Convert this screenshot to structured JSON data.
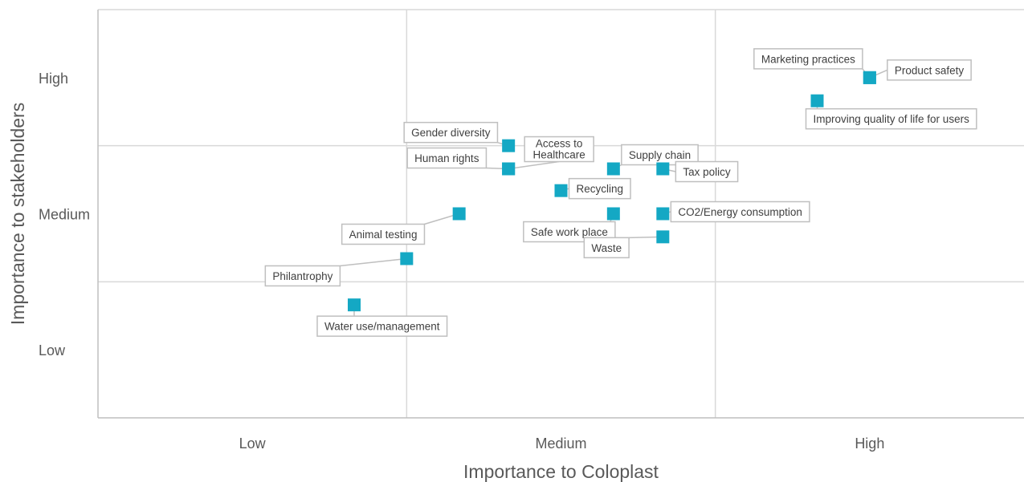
{
  "chart_data": {
    "type": "scatter",
    "xlabel": "Importance to Coloplast",
    "ylabel": "Importance to stakeholders",
    "xlim": [
      0,
      3
    ],
    "ylim": [
      0,
      3
    ],
    "x_tick_labels": [
      "Low",
      "Medium",
      "High"
    ],
    "y_tick_labels": [
      "Low",
      "Medium",
      "High"
    ],
    "grid": true,
    "marker_color": "#14a8c4",
    "points": [
      {
        "label": "Marketing practices",
        "x": 2.5,
        "y": 2.5
      },
      {
        "label": "Product safety",
        "x": 2.5,
        "y": 2.5
      },
      {
        "label": "Improving quality of life for users",
        "x": 2.33,
        "y": 2.33
      },
      {
        "label": "Gender diversity",
        "x": 1.33,
        "y": 2.0
      },
      {
        "label": "Human rights",
        "x": 1.33,
        "y": 1.83
      },
      {
        "label": "Access to Healthcare",
        "x": 1.33,
        "y": 1.83
      },
      {
        "label": "Supply chain",
        "x": 1.67,
        "y": 1.83
      },
      {
        "label": "Tax policy",
        "x": 1.83,
        "y": 1.83
      },
      {
        "label": "Recycling",
        "x": 1.5,
        "y": 1.67
      },
      {
        "label": "Animal testing",
        "x": 1.17,
        "y": 1.5
      },
      {
        "label": "Safe work place",
        "x": 1.67,
        "y": 1.5
      },
      {
        "label": "CO2/Energy consumption",
        "x": 1.83,
        "y": 1.5
      },
      {
        "label": "Waste",
        "x": 1.83,
        "y": 1.33
      },
      {
        "label": "Philantrophy",
        "x": 1.0,
        "y": 1.17
      },
      {
        "label": "Water use/management",
        "x": 0.83,
        "y": 0.83
      }
    ]
  }
}
